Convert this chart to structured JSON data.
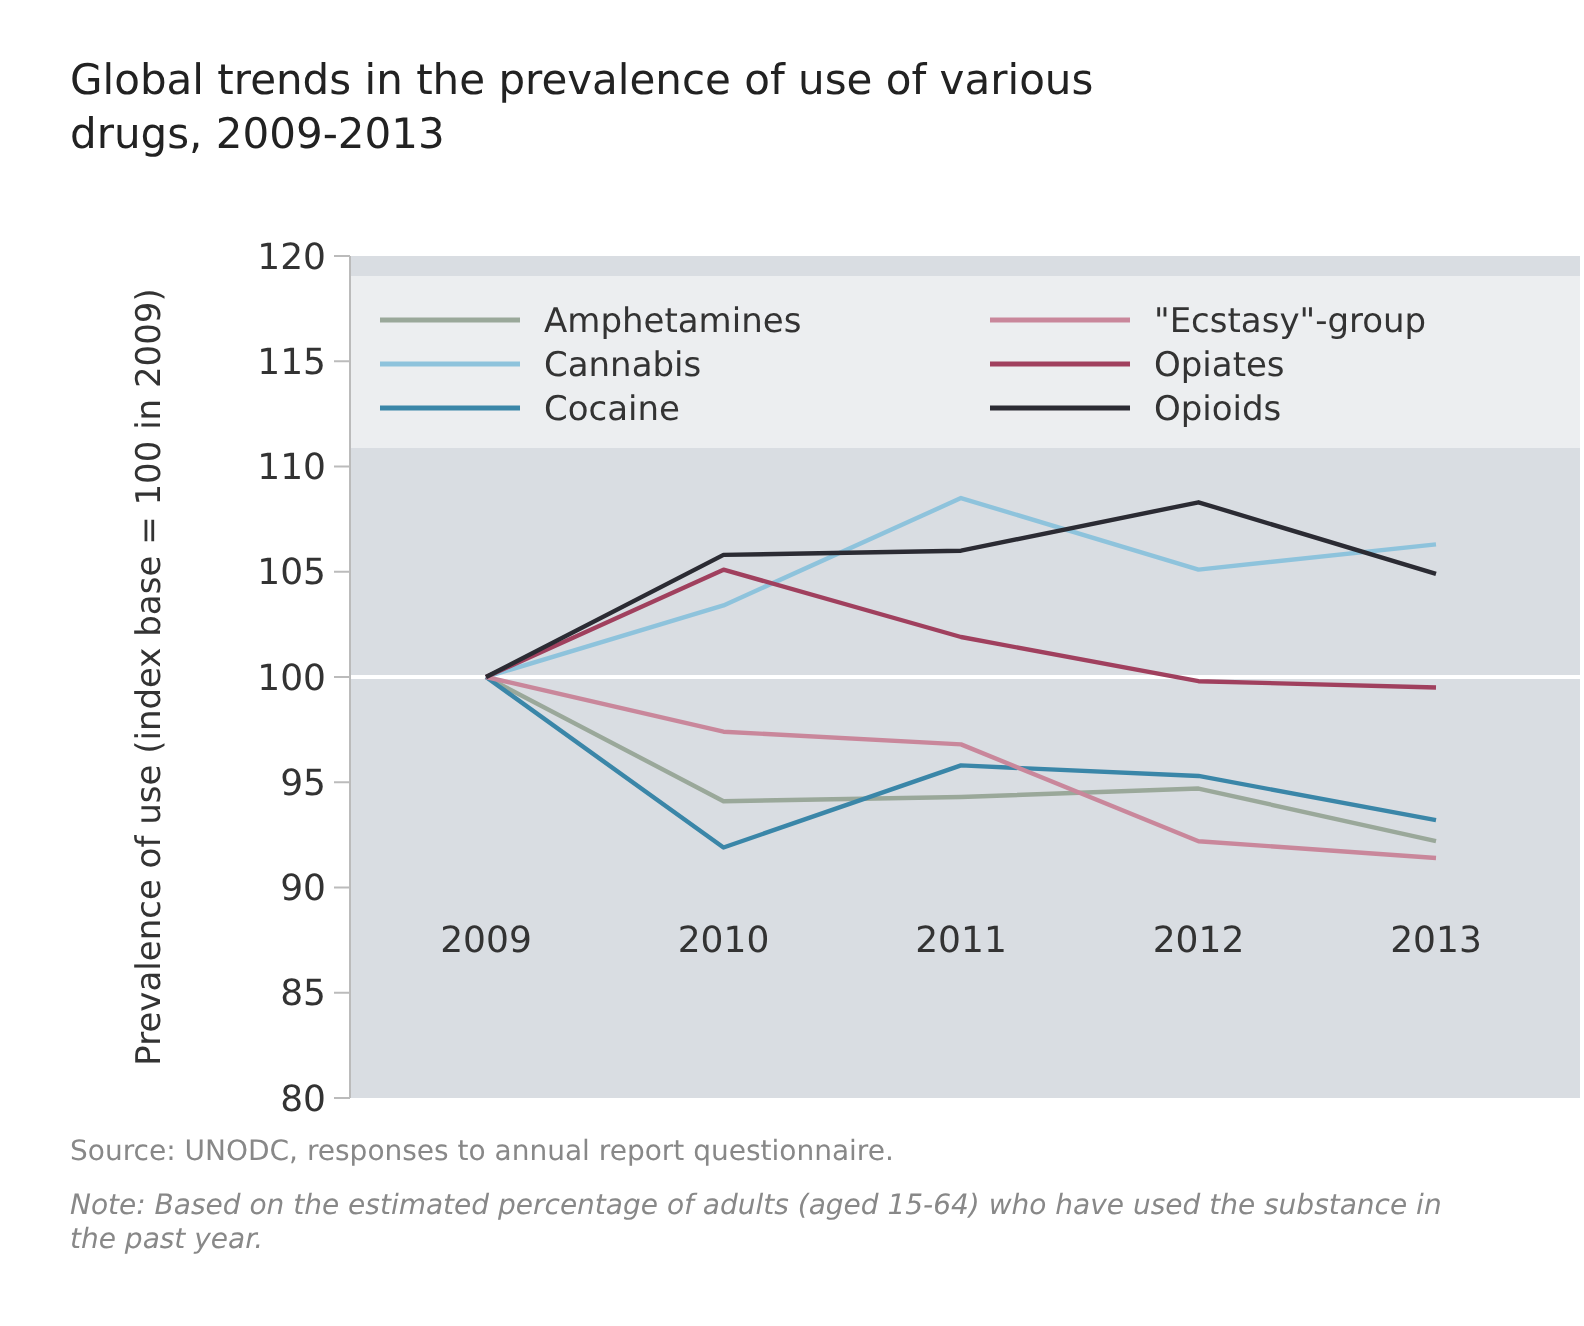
{
  "chart_data": {
    "type": "line",
    "title": "Global trends in the prevalence of use of various drugs, 2009-2013",
    "ylabel": "Prevalence of use (index base = 100 in 2009)",
    "categories": [
      "2009",
      "2010",
      "2011",
      "2012",
      "2013"
    ],
    "series": [
      {
        "name": "Amphetamines",
        "color": "#9aa89a",
        "values": [
          100,
          94.1,
          94.3,
          94.7,
          92.2
        ]
      },
      {
        "name": "Cannabis",
        "color": "#8ec3dc",
        "values": [
          100,
          103.4,
          108.5,
          105.1,
          106.3
        ]
      },
      {
        "name": "Cocaine",
        "color": "#3a86a8",
        "values": [
          100,
          91.9,
          95.8,
          95.3,
          93.2
        ]
      },
      {
        "name": "\"Ecstasy\"-group",
        "color": "#c9879b",
        "values": [
          100,
          97.4,
          96.8,
          92.2,
          91.4
        ]
      },
      {
        "name": "Opiates",
        "color": "#a0405e",
        "values": [
          100,
          105.1,
          101.9,
          99.8,
          99.5
        ]
      },
      {
        "name": "Opioids",
        "color": "#2b2b33",
        "values": [
          100,
          105.8,
          106,
          108.3,
          104.9
        ]
      }
    ],
    "ylim": [
      80,
      120
    ],
    "yticks": [
      80,
      85,
      90,
      95,
      100,
      105,
      110,
      115,
      120
    ],
    "grid": false,
    "legend": "top",
    "marker": "none",
    "line_style": "solid",
    "ref_lines": [
      {
        "axis": "y",
        "value": 100,
        "color": "#ffffff"
      }
    ],
    "annotations": [
      "Source: UNODC, responses to annual report questionnaire.",
      "Note: Based on the estimated percentage of adults (aged 15-64) who have used the substance in the past year."
    ]
  }
}
